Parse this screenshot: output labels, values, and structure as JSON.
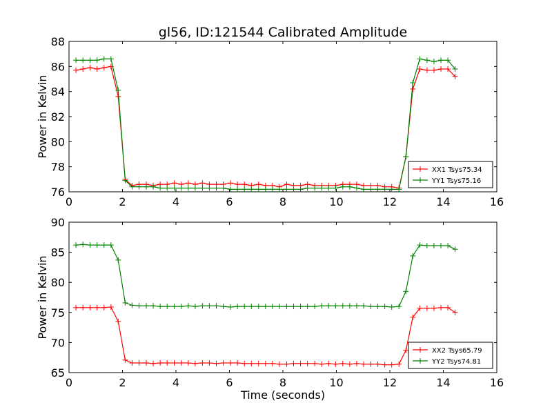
{
  "title": "gl56, ID:121544 Calibrated Amplitude",
  "chart_data": [
    {
      "type": "line",
      "title": "gl56, ID:121544 Calibrated Amplitude",
      "xlabel": "",
      "ylabel": "Power in Kelvin",
      "xlim": [
        0,
        16
      ],
      "ylim": [
        76,
        88
      ],
      "xticks": [
        0,
        2,
        4,
        6,
        8,
        10,
        12,
        14,
        16
      ],
      "yticks": [
        76,
        78,
        80,
        82,
        84,
        86,
        88
      ],
      "legend_position": "lower-right",
      "x": [
        0.26,
        0.52,
        0.79,
        1.05,
        1.31,
        1.57,
        1.84,
        2.1,
        2.36,
        2.62,
        2.89,
        3.15,
        3.41,
        3.67,
        3.94,
        4.2,
        4.46,
        4.72,
        4.99,
        5.25,
        5.51,
        5.77,
        6.04,
        6.3,
        6.56,
        6.82,
        7.09,
        7.35,
        7.61,
        7.87,
        8.14,
        8.4,
        8.66,
        8.92,
        9.19,
        9.45,
        9.71,
        9.97,
        10.24,
        10.5,
        10.76,
        11.02,
        11.29,
        11.55,
        11.81,
        12.07,
        12.34,
        12.6,
        12.86,
        13.12,
        13.39,
        13.65,
        13.91,
        14.17,
        14.44
      ],
      "series": [
        {
          "name": "XX1 Tsys75.34",
          "color": "#ff0000",
          "values": [
            85.7,
            85.8,
            85.9,
            85.8,
            85.9,
            86.0,
            83.6,
            77.0,
            76.5,
            76.6,
            76.6,
            76.5,
            76.6,
            76.6,
            76.7,
            76.6,
            76.7,
            76.6,
            76.7,
            76.6,
            76.6,
            76.6,
            76.7,
            76.6,
            76.6,
            76.5,
            76.6,
            76.5,
            76.5,
            76.4,
            76.6,
            76.5,
            76.5,
            76.6,
            76.5,
            76.5,
            76.5,
            76.5,
            76.6,
            76.6,
            76.6,
            76.5,
            76.5,
            76.5,
            76.4,
            76.4,
            76.3,
            78.8,
            84.2,
            85.8,
            85.7,
            85.7,
            85.8,
            85.8,
            85.2
          ]
        },
        {
          "name": "YY1 Tsys75.16",
          "color": "#008000",
          "values": [
            86.5,
            86.5,
            86.5,
            86.5,
            86.6,
            86.6,
            84.1,
            76.9,
            76.4,
            76.4,
            76.4,
            76.4,
            76.3,
            76.3,
            76.3,
            76.3,
            76.3,
            76.3,
            76.3,
            76.3,
            76.3,
            76.3,
            76.2,
            76.2,
            76.2,
            76.2,
            76.2,
            76.2,
            76.2,
            76.2,
            76.2,
            76.2,
            76.2,
            76.3,
            76.3,
            76.3,
            76.3,
            76.3,
            76.4,
            76.4,
            76.3,
            76.2,
            76.2,
            76.2,
            76.2,
            76.2,
            76.2,
            78.8,
            84.7,
            86.6,
            86.5,
            86.4,
            86.5,
            86.5,
            85.8
          ]
        }
      ]
    },
    {
      "type": "line",
      "title": "",
      "xlabel": "Time (seconds)",
      "ylabel": "Power in Kelvin",
      "xlim": [
        0,
        16
      ],
      "ylim": [
        65,
        90
      ],
      "xticks": [
        0,
        2,
        4,
        6,
        8,
        10,
        12,
        14,
        16
      ],
      "yticks": [
        65,
        70,
        75,
        80,
        85,
        90
      ],
      "legend_position": "lower-right",
      "x": [
        0.26,
        0.52,
        0.79,
        1.05,
        1.31,
        1.57,
        1.84,
        2.1,
        2.36,
        2.62,
        2.89,
        3.15,
        3.41,
        3.67,
        3.94,
        4.2,
        4.46,
        4.72,
        4.99,
        5.25,
        5.51,
        5.77,
        6.04,
        6.3,
        6.56,
        6.82,
        7.09,
        7.35,
        7.61,
        7.87,
        8.14,
        8.4,
        8.66,
        8.92,
        9.19,
        9.45,
        9.71,
        9.97,
        10.24,
        10.5,
        10.76,
        11.02,
        11.29,
        11.55,
        11.81,
        12.07,
        12.34,
        12.6,
        12.86,
        13.12,
        13.39,
        13.65,
        13.91,
        14.17,
        14.44
      ],
      "series": [
        {
          "name": "XX2 Tsys65.79",
          "color": "#ff0000",
          "values": [
            75.8,
            75.8,
            75.8,
            75.8,
            75.8,
            75.9,
            73.5,
            67.1,
            66.6,
            66.6,
            66.6,
            66.5,
            66.6,
            66.6,
            66.6,
            66.6,
            66.6,
            66.5,
            66.6,
            66.6,
            66.5,
            66.6,
            66.6,
            66.6,
            66.5,
            66.5,
            66.5,
            66.5,
            66.5,
            66.4,
            66.4,
            66.5,
            66.5,
            66.5,
            66.5,
            66.4,
            66.5,
            66.4,
            66.5,
            66.4,
            66.5,
            66.4,
            66.4,
            66.4,
            66.3,
            66.3,
            66.4,
            68.7,
            74.2,
            75.7,
            75.7,
            75.7,
            75.8,
            75.8,
            75.0
          ]
        },
        {
          "name": "YY2 Tsys74.81",
          "color": "#008000",
          "values": [
            86.2,
            86.3,
            86.2,
            86.2,
            86.2,
            86.2,
            83.7,
            76.6,
            76.2,
            76.1,
            76.1,
            76.1,
            76.0,
            76.0,
            76.0,
            76.0,
            76.1,
            76.0,
            76.1,
            76.1,
            76.1,
            76.0,
            75.9,
            76.0,
            76.0,
            76.0,
            76.0,
            76.0,
            76.0,
            76.0,
            76.0,
            76.0,
            76.0,
            76.0,
            76.0,
            76.1,
            76.1,
            76.1,
            76.1,
            76.1,
            76.1,
            76.1,
            76.0,
            76.0,
            76.0,
            75.9,
            76.0,
            78.5,
            84.4,
            86.2,
            86.1,
            86.1,
            86.1,
            86.1,
            85.5
          ]
        }
      ]
    }
  ]
}
